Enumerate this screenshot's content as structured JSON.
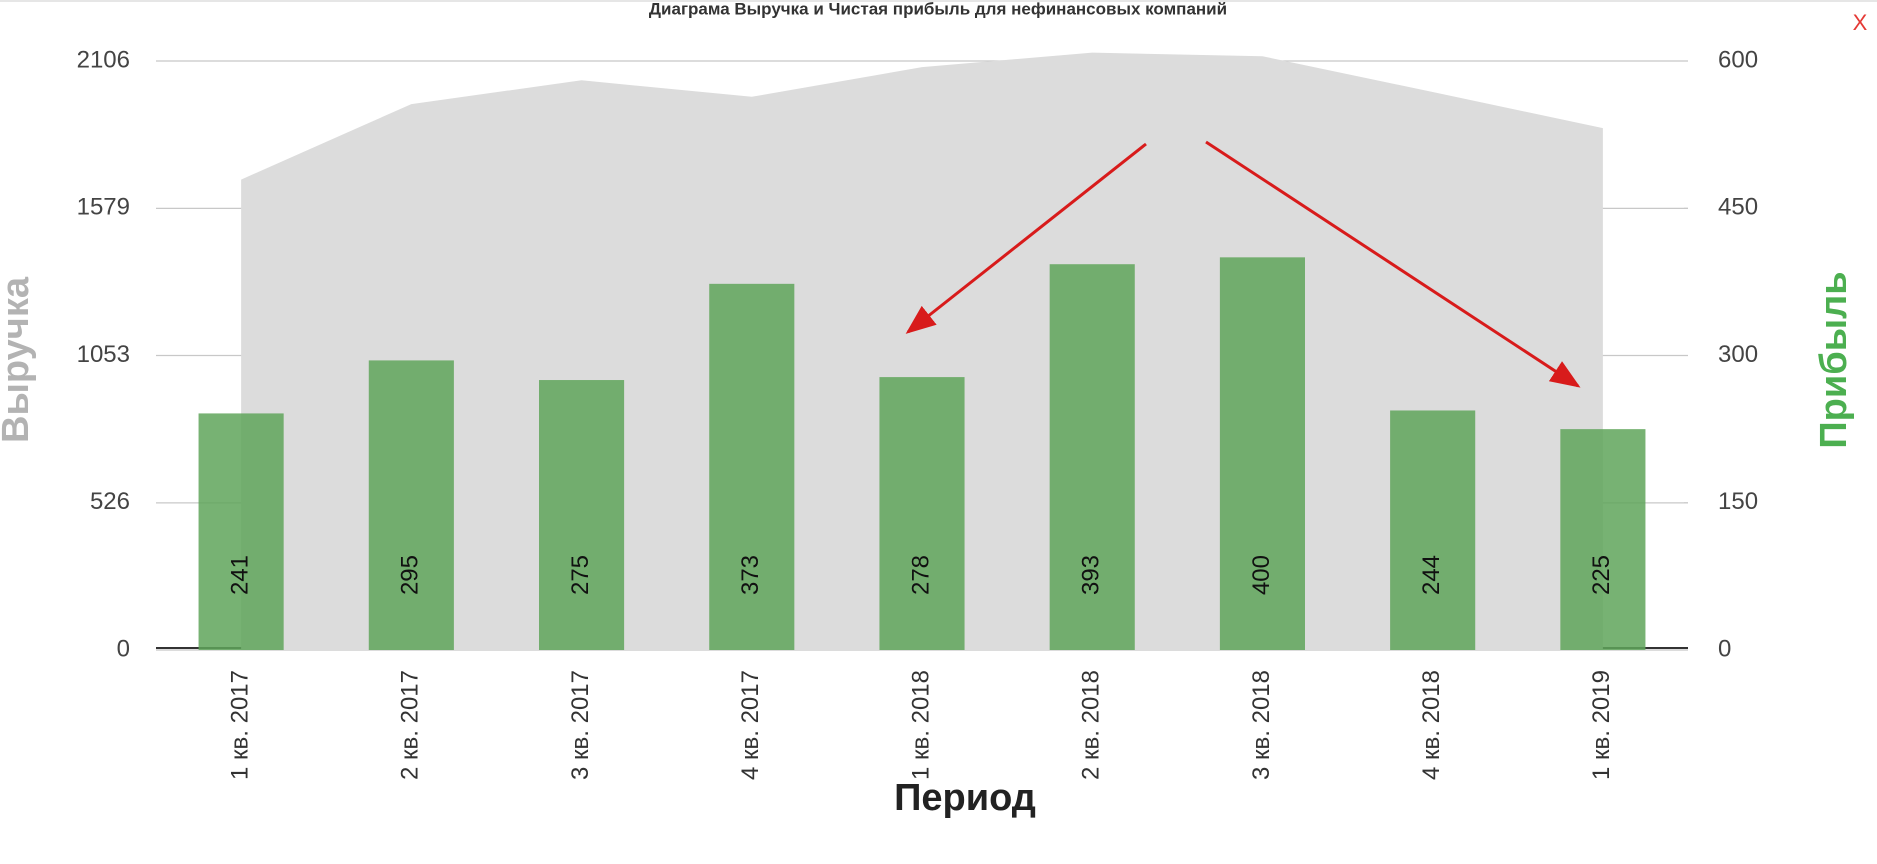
{
  "chart_data": {
    "type": "bar+area",
    "title": "Диаграма Выручка и Чистая прибыль для нефинансовых компаний",
    "x_label": "Период",
    "close_button": "X",
    "categories": [
      "1 кв. 2017",
      "2 кв. 2017",
      "3 кв. 2017",
      "4 кв. 2017",
      "1 кв. 2018",
      "2 кв. 2018",
      "3 кв. 2018",
      "4 кв. 2018",
      "1 кв. 2019"
    ],
    "series": [
      {
        "name": "Выручка",
        "type": "area",
        "axis": "y",
        "color": "#dcdcdc",
        "label_color": "#b3b3b3",
        "values": [
          1682,
          1952,
          2037,
          1978,
          2084,
          2136,
          2123,
          1995,
          1866
        ]
      },
      {
        "name": "Прибыль",
        "type": "bar",
        "axis": "y2",
        "color": "#5fa55a",
        "label_color": "#4caf50",
        "values": [
          241,
          295,
          275,
          373,
          278,
          393,
          400,
          244,
          225
        ]
      }
    ],
    "ylim": [
      0,
      2106
    ],
    "yticks": [
      0,
      526,
      1053,
      1579,
      2106
    ],
    "y2lim": [
      0,
      600
    ],
    "y2ticks": [
      0,
      150,
      300,
      450,
      600
    ],
    "grid": true
  }
}
